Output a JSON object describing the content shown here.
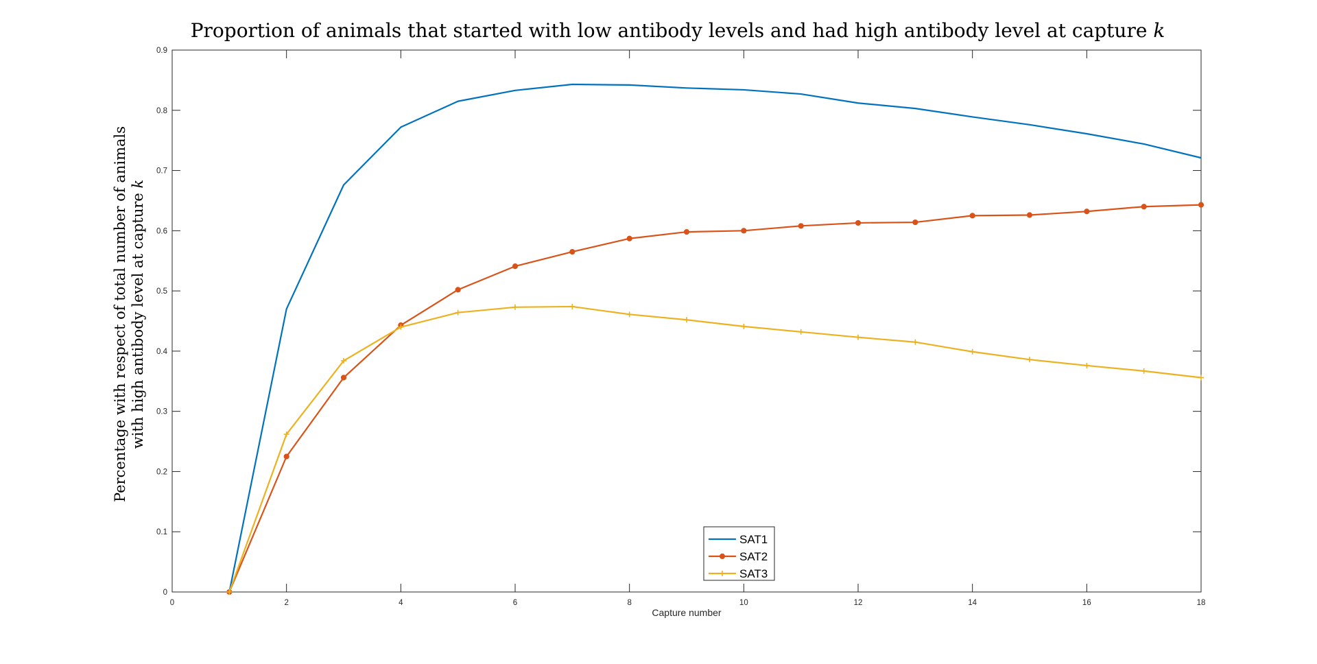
{
  "chart_data": {
    "type": "line",
    "title": "Proportion of animals that started with low antibody levels and had high antibody level at capture ",
    "title_var": "k",
    "xlabel": "Capture number",
    "ylabel_line1": "Percentage with respect of total number of animals",
    "ylabel_line2": "with high antibody level at capture ",
    "ylabel_var": "k",
    "xlim": [
      0,
      18
    ],
    "ylim": [
      0,
      0.9
    ],
    "xticks": [
      "0",
      "2",
      "4",
      "6",
      "8",
      "10",
      "12",
      "14",
      "16",
      "18"
    ],
    "yticks": [
      "0",
      "0.1",
      "0.2",
      "0.3",
      "0.4",
      "0.5",
      "0.6",
      "0.7",
      "0.8",
      "0.9"
    ],
    "grid": false,
    "legend_position": "bottom-center",
    "x": [
      1,
      2,
      3,
      4,
      5,
      6,
      7,
      8,
      9,
      10,
      11,
      12,
      13,
      14,
      15,
      16,
      17,
      18
    ],
    "series": [
      {
        "name": "SAT1",
        "color": "#0072BD",
        "marker": "none",
        "values": [
          0,
          0.47,
          0.676,
          0.772,
          0.815,
          0.833,
          0.843,
          0.842,
          0.837,
          0.834,
          0.827,
          0.812,
          0.803,
          0.789,
          0.776,
          0.761,
          0.744,
          0.721
        ]
      },
      {
        "name": "SAT2",
        "color": "#D95319",
        "marker": "dot",
        "values": [
          0,
          0.225,
          0.356,
          0.443,
          0.502,
          0.541,
          0.565,
          0.587,
          0.598,
          0.6,
          0.608,
          0.613,
          0.614,
          0.625,
          0.626,
          0.632,
          0.64,
          0.643
        ]
      },
      {
        "name": "SAT3",
        "color": "#EDB120",
        "marker": "plus",
        "values": [
          0,
          0.262,
          0.384,
          0.44,
          0.464,
          0.473,
          0.474,
          0.461,
          0.452,
          0.441,
          0.432,
          0.423,
          0.415,
          0.399,
          0.386,
          0.376,
          0.367,
          0.356
        ]
      }
    ]
  }
}
